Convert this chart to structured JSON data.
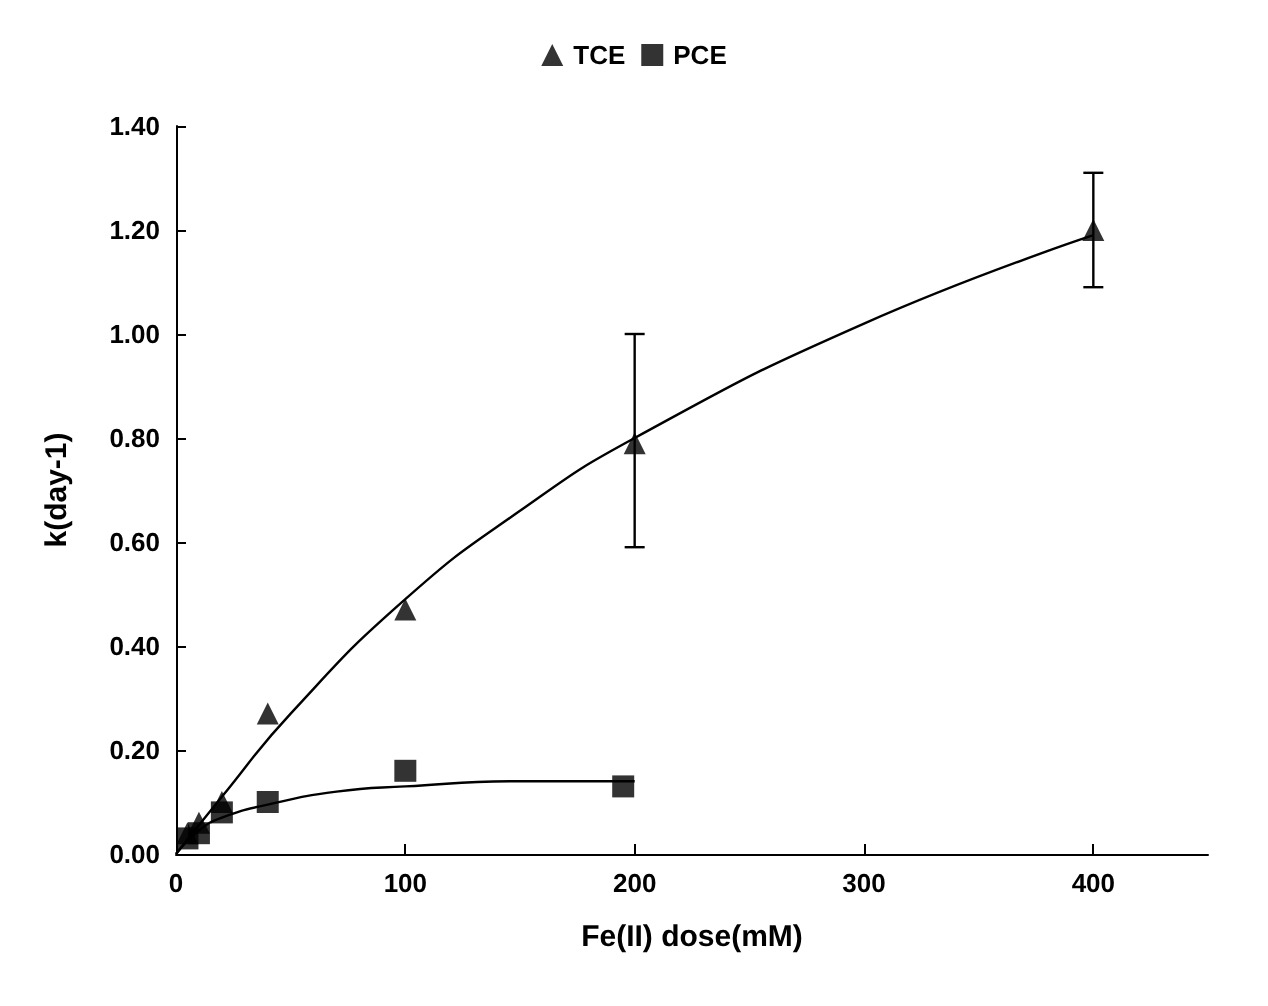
{
  "chart_data": {
    "type": "scatter",
    "xlabel": "Fe(II) dose(mM)",
    "ylabel": "k(day-1)",
    "xlim": [
      0,
      450
    ],
    "xticks": [
      0,
      100,
      200,
      300,
      400
    ],
    "ylim": [
      0,
      1.4
    ],
    "yticks": [
      {
        "value": 0,
        "label": "0.00"
      },
      {
        "value": 0.2,
        "label": "0.20"
      },
      {
        "value": 0.4,
        "label": "0.40"
      },
      {
        "value": 0.6,
        "label": "0.60"
      },
      {
        "value": 0.8,
        "label": "0.80"
      },
      {
        "value": 1,
        "label": "1.00"
      },
      {
        "value": 1.2,
        "label": "1.20"
      },
      {
        "value": 1.4,
        "label": "1.40"
      }
    ],
    "grid": false,
    "legend": "top",
    "series": [
      {
        "name": "TCE",
        "color": "#000000",
        "marker": "triangle",
        "x": [
          5,
          10,
          20,
          40,
          100,
          200,
          400
        ],
        "values": [
          0.04,
          0.06,
          0.1,
          0.27,
          0.47,
          0.79,
          1.2
        ],
        "errors": [
          null,
          null,
          null,
          null,
          null,
          [
            0.59,
            1.0
          ],
          [
            1.09,
            1.31
          ]
        ]
      },
      {
        "name": "PCE",
        "color": "#000000",
        "marker": "square",
        "x": [
          5,
          10,
          20,
          40,
          100,
          195
        ],
        "values": [
          0.03,
          0.04,
          0.08,
          0.1,
          0.16,
          0.13
        ]
      },
      {
        "type": "line",
        "color": "#000000",
        "marker": "none",
        "x": [
          0,
          20,
          50,
          100,
          150,
          200,
          300,
          400
        ],
        "values": [
          0,
          0.11,
          0.27,
          0.49,
          0.66,
          0.8,
          1.02,
          1.19
        ]
      },
      {
        "type": "line",
        "color": "#000000",
        "marker": "none",
        "x": [
          0,
          10,
          20,
          40,
          70,
          100,
          150,
          200
        ],
        "values": [
          0,
          0.045,
          0.07,
          0.095,
          0.12,
          0.13,
          0.14,
          0.14
        ]
      }
    ]
  }
}
